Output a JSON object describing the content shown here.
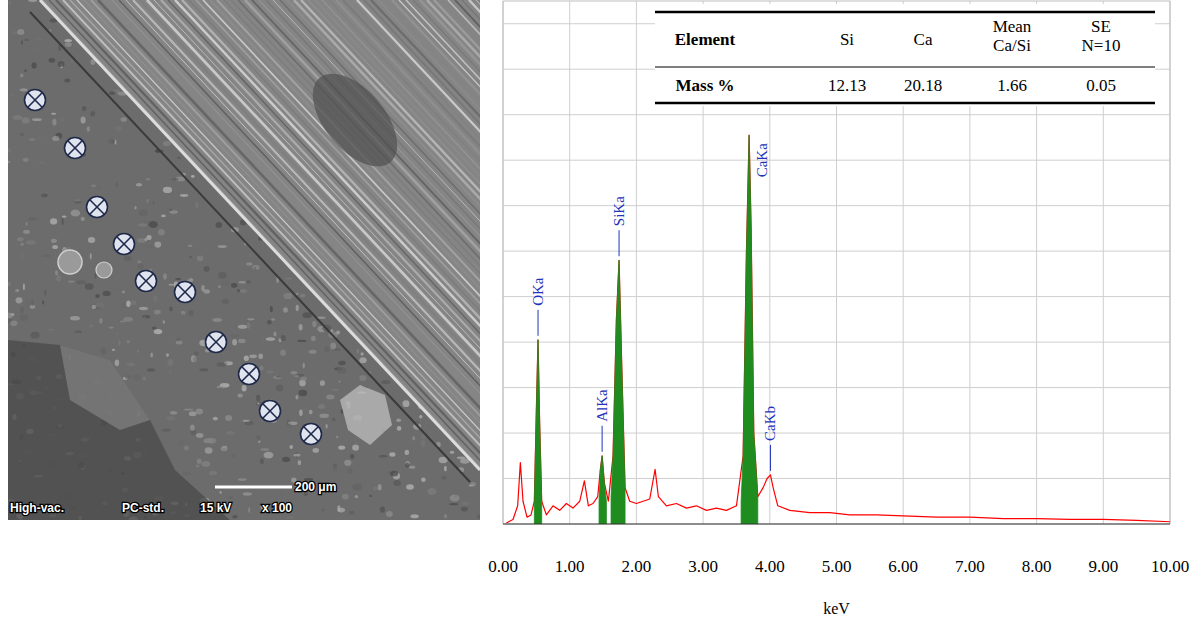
{
  "chart_data": {
    "type": "line",
    "x_label": "keV",
    "xlim": [
      0,
      10
    ],
    "xticks": [
      {
        "value": 0,
        "label": "0.00"
      },
      {
        "value": 1,
        "label": "1.00"
      },
      {
        "value": 2,
        "label": "2.00"
      },
      {
        "value": 3,
        "label": "3.00"
      },
      {
        "value": 4,
        "label": "4.00"
      },
      {
        "value": 5,
        "label": "5.00"
      },
      {
        "value": 6,
        "label": "6.00"
      },
      {
        "value": 7,
        "label": "7.00"
      },
      {
        "value": 8,
        "label": "8.00"
      },
      {
        "value": 9,
        "label": "9.00"
      },
      {
        "value": 10,
        "label": "10.00"
      }
    ],
    "ylim": [
      0,
      11.5
    ],
    "yticks": [
      0,
      1,
      2,
      3,
      4,
      5,
      6,
      7,
      8,
      9,
      10,
      11
    ],
    "tick_labels": "x",
    "grid": true,
    "series": [
      {
        "type": "line",
        "color": "#ff0000",
        "x": [
          0.05,
          0.15,
          0.22,
          0.26,
          0.3,
          0.36,
          0.42,
          0.47,
          0.5,
          0.525,
          0.55,
          0.58,
          0.65,
          0.75,
          0.85,
          0.95,
          1.05,
          1.15,
          1.22,
          1.28,
          1.35,
          1.42,
          1.46,
          1.486,
          1.52,
          1.58,
          1.65,
          1.7,
          1.74,
          1.78,
          1.83,
          1.9,
          2.0,
          2.1,
          2.2,
          2.28,
          2.33,
          2.45,
          2.6,
          2.75,
          2.9,
          3.05,
          3.2,
          3.35,
          3.5,
          3.6,
          3.65,
          3.69,
          3.72,
          3.76,
          3.82,
          3.9,
          3.96,
          4.01,
          4.05,
          4.12,
          4.3,
          4.6,
          4.9,
          5.2,
          5.6,
          6.0,
          6.5,
          7.0,
          7.5,
          8.0,
          8.5,
          9.0,
          9.5,
          10.0
        ],
        "values": [
          0.02,
          0.1,
          0.4,
          1.35,
          0.5,
          0.15,
          0.2,
          0.5,
          2.5,
          4.05,
          2.2,
          0.5,
          0.2,
          0.4,
          0.3,
          0.45,
          0.35,
          0.5,
          0.95,
          0.4,
          0.45,
          0.6,
          1.2,
          1.5,
          0.9,
          0.5,
          1.5,
          4.5,
          5.8,
          3.5,
          0.8,
          0.5,
          0.45,
          0.5,
          0.55,
          1.2,
          0.6,
          0.4,
          0.45,
          0.35,
          0.4,
          0.3,
          0.35,
          0.3,
          0.4,
          1.5,
          6,
          8.55,
          6.5,
          2,
          0.6,
          0.8,
          1.0,
          1.08,
          0.8,
          0.4,
          0.3,
          0.25,
          0.25,
          0.2,
          0.2,
          0.18,
          0.15,
          0.15,
          0.12,
          0.12,
          0.1,
          0.1,
          0.08,
          0.05
        ]
      },
      {
        "type": "area",
        "color": "#1e8c1e",
        "x": [
          0.47,
          0.5,
          0.525,
          0.55,
          0.58,
          1.0,
          1.44,
          1.46,
          1.486,
          1.52,
          1.55,
          1.6,
          1.62,
          1.65,
          1.7,
          1.74,
          1.78,
          1.83,
          2.5,
          3.57,
          3.6,
          3.65,
          3.69,
          3.72,
          3.76,
          3.82
        ],
        "values": [
          0.5,
          2.5,
          4.05,
          2.2,
          0.5,
          null,
          0.5,
          1.2,
          1.5,
          0.9,
          0.5,
          null,
          0.6,
          1.5,
          4.5,
          5.8,
          3.5,
          0.8,
          null,
          0.5,
          1.5,
          6,
          8.55,
          6.5,
          2,
          0.6
        ]
      }
    ],
    "annotations": [
      {
        "text": "OKa",
        "x": 0.525,
        "y": 4.05
      },
      {
        "text": "AlKa",
        "x": 1.486,
        "y": 1.5
      },
      {
        "text": "SiKa",
        "x": 1.74,
        "y": 5.8
      },
      {
        "text": "CaKa",
        "x": 3.69,
        "y": 8.55
      },
      {
        "text": "CaKb",
        "x": 4.01,
        "y": 1.08
      }
    ],
    "table": {
      "columns": [
        "Element",
        "Si",
        "Ca",
        "Mean Ca/Si",
        "SE N=10"
      ],
      "rows": [
        [
          "Mass %",
          12.13,
          20.18,
          1.66,
          0.05
        ]
      ]
    }
  },
  "sem_image": {
    "labels": [
      "High-vac.",
      "PC-std.",
      "15 kV",
      "x 100"
    ],
    "scale_bar": "200 μm"
  }
}
